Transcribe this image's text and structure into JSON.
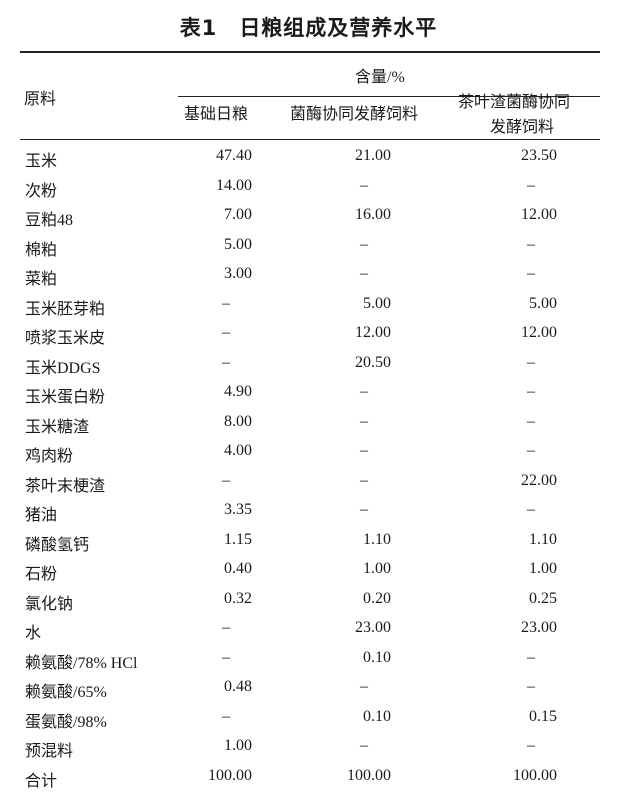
{
  "title": {
    "number": "表1",
    "text": "日粮组成及营养水平"
  },
  "header": {
    "material": "原料",
    "group": "含量/%",
    "columns": [
      "基础日粮",
      "菌酶协同发酵饲料",
      "茶叶渣菌酶协同",
      "发酵饲料"
    ]
  },
  "rows": [
    {
      "name": "玉米",
      "values": [
        "47.40",
        "21.00",
        "23.50"
      ]
    },
    {
      "name": "次粉",
      "values": [
        "14.00",
        "–",
        "–"
      ]
    },
    {
      "name": "豆粕48",
      "values": [
        "7.00",
        "16.00",
        "12.00"
      ]
    },
    {
      "name": "棉粕",
      "values": [
        "5.00",
        "–",
        "–"
      ]
    },
    {
      "name": "菜粕",
      "values": [
        "3.00",
        "–",
        "–"
      ]
    },
    {
      "name": "玉米胚芽粕",
      "values": [
        "–",
        "5.00",
        "5.00"
      ]
    },
    {
      "name": "喷浆玉米皮",
      "values": [
        "–",
        "12.00",
        "12.00"
      ]
    },
    {
      "name": "玉米DDGS",
      "values": [
        "–",
        "20.50",
        "–"
      ]
    },
    {
      "name": "玉米蛋白粉",
      "values": [
        "4.90",
        "–",
        "–"
      ]
    },
    {
      "name": "玉米糖渣",
      "values": [
        "8.00",
        "–",
        "–"
      ]
    },
    {
      "name": "鸡肉粉",
      "values": [
        "4.00",
        "–",
        "–"
      ]
    },
    {
      "name": "茶叶末梗渣",
      "values": [
        "–",
        "–",
        "22.00"
      ]
    },
    {
      "name": "猪油",
      "values": [
        "3.35",
        "–",
        "–"
      ]
    },
    {
      "name": "磷酸氢钙",
      "values": [
        "1.15",
        "1.10",
        "1.10"
      ]
    },
    {
      "name": "石粉",
      "values": [
        "0.40",
        "1.00",
        "1.00"
      ]
    },
    {
      "name": "氯化钠",
      "values": [
        "0.32",
        "0.20",
        "0.25"
      ]
    },
    {
      "name": "水",
      "values": [
        "–",
        "23.00",
        "23.00"
      ]
    },
    {
      "name": "赖氨酸/78% HCl",
      "values": [
        "–",
        "0.10",
        "–"
      ]
    },
    {
      "name": "赖氨酸/65%",
      "values": [
        "0.48",
        "–",
        "–"
      ]
    },
    {
      "name": "蛋氨酸/98%",
      "values": [
        "–",
        "0.10",
        "0.15"
      ]
    },
    {
      "name": "预混料",
      "values": [
        "1.00",
        "–",
        "–"
      ]
    },
    {
      "name": "合计",
      "values": [
        "100.00",
        "100.00",
        "100.00"
      ]
    }
  ]
}
